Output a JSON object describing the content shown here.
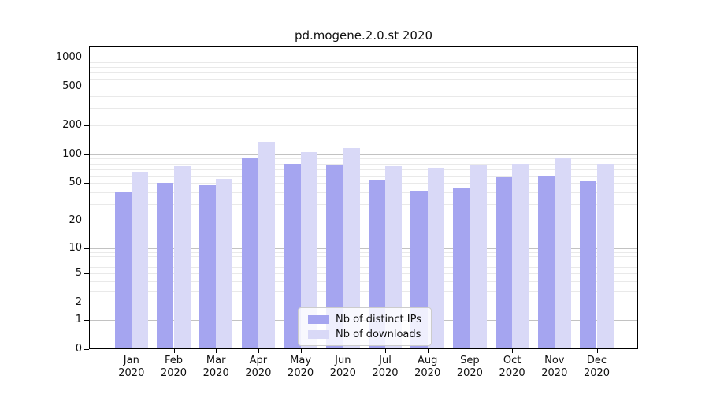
{
  "chart_data": {
    "type": "bar",
    "title": "pd.mogene.2.0.st 2020",
    "categories": [
      "Jan",
      "Feb",
      "Mar",
      "Apr",
      "May",
      "Jun",
      "Jul",
      "Aug",
      "Sep",
      "Oct",
      "Nov",
      "Dec"
    ],
    "category_year": "2020",
    "series": [
      {
        "name": "Nb of distinct IPs",
        "color": "#a5a5f0",
        "values": [
          40,
          50,
          48,
          93,
          79,
          77,
          53,
          42,
          45,
          58,
          60,
          52
        ]
      },
      {
        "name": "Nb of downloads",
        "color": "#d9d9f7",
        "values": [
          66,
          75,
          56,
          135,
          106,
          116,
          75,
          73,
          78,
          80,
          90,
          80
        ]
      }
    ],
    "y_ticks": [
      0,
      1,
      2,
      5,
      10,
      20,
      50,
      100,
      200,
      500,
      1000
    ],
    "yscale": "log1p",
    "ylim": [
      0,
      1300
    ],
    "xlabel": "",
    "ylabel": "",
    "grid": "horizontal-log-minors-on",
    "legend_position": "lower center"
  }
}
